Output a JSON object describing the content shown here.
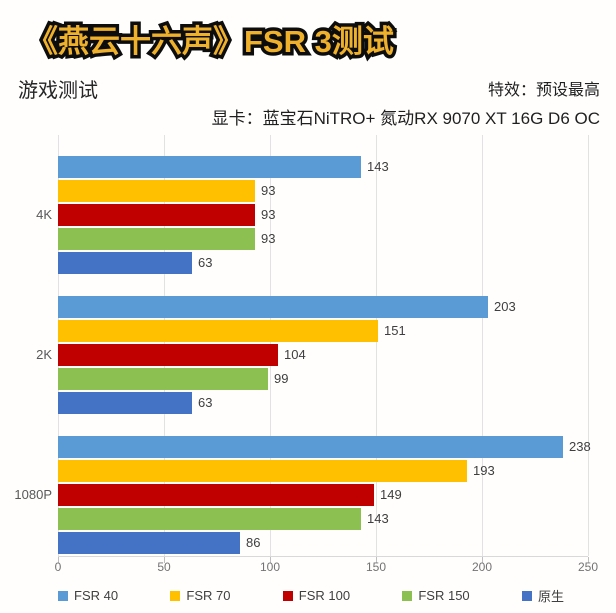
{
  "title": "《燕云十六声》FSR 3测试",
  "header": {
    "left_label": "游戏测试",
    "effects": "特效：预设最高",
    "gpu": "显卡：蓝宝石NiTRO+ 氮动RX 9070 XT 16G D6 OC"
  },
  "colors": {
    "title_fill": "#efb12c",
    "title_outline": "#0d0d0d",
    "gridline": "#e2e2e2",
    "axis_text": "#737373",
    "category_text": "#595959",
    "value_text": "#3f3f3f"
  },
  "chart_data": {
    "type": "bar",
    "orientation": "horizontal",
    "categories": [
      "4K",
      "2K",
      "1080P"
    ],
    "series": [
      {
        "name": "FSR 40",
        "color": "#5B9BD5",
        "values": [
          143,
          203,
          238
        ]
      },
      {
        "name": "FSR 70",
        "color": "#FFC000",
        "values": [
          93,
          151,
          193
        ]
      },
      {
        "name": "FSR 100",
        "color": "#C00000",
        "values": [
          93,
          104,
          149
        ]
      },
      {
        "name": "FSR 150",
        "color": "#8CC152",
        "values": [
          93,
          99,
          143
        ]
      },
      {
        "name": "原生",
        "color": "#4472C4",
        "values": [
          63,
          63,
          86
        ]
      }
    ],
    "xlim": [
      0,
      250
    ],
    "xticks": [
      0,
      50,
      100,
      150,
      200,
      250
    ],
    "grid": true,
    "legend_position": "bottom",
    "value_labels": true
  }
}
